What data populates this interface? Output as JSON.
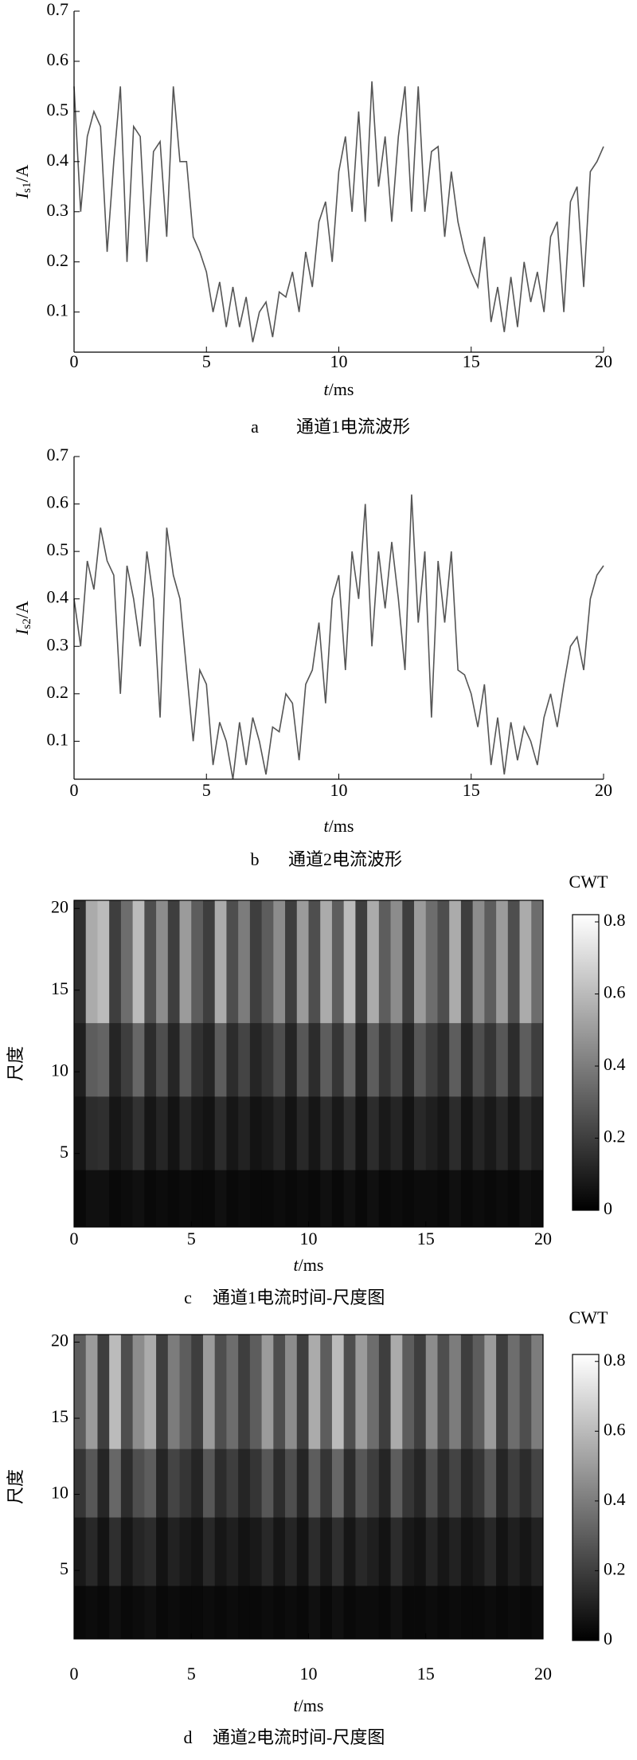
{
  "chart_data": [
    {
      "type": "line",
      "label": "a",
      "caption": "通道1电流波形",
      "xlabel": {
        "var": "t",
        "unit": "/ms"
      },
      "ylabel": {
        "var": "I",
        "sub": "s1",
        "unit": "/A"
      },
      "xlim": [
        0,
        20
      ],
      "xticks": [
        0,
        5,
        10,
        15,
        20
      ],
      "ylim": [
        0.02,
        0.7
      ],
      "yticks": [
        0.1,
        0.2,
        0.3,
        0.4,
        0.5,
        0.6,
        0.7
      ],
      "x": [
        0,
        0.25,
        0.5,
        0.75,
        1,
        1.25,
        1.5,
        1.75,
        2,
        2.25,
        2.5,
        2.75,
        3,
        3.25,
        3.5,
        3.75,
        4,
        4.25,
        4.5,
        4.75,
        5,
        5.25,
        5.5,
        5.75,
        6,
        6.25,
        6.5,
        6.75,
        7,
        7.25,
        7.5,
        7.75,
        8,
        8.25,
        8.5,
        8.75,
        9,
        9.25,
        9.5,
        9.75,
        10,
        10.25,
        10.5,
        10.75,
        11,
        11.25,
        11.5,
        11.75,
        12,
        12.25,
        12.5,
        12.75,
        13,
        13.25,
        13.5,
        13.75,
        14,
        14.25,
        14.5,
        14.75,
        15,
        15.25,
        15.5,
        15.75,
        16,
        16.25,
        16.5,
        16.75,
        17,
        17.25,
        17.5,
        17.75,
        18,
        18.25,
        18.5,
        18.75,
        19,
        19.25,
        19.5,
        19.75,
        20
      ],
      "series": [
        {
          "color": "#555555",
          "values": [
            0.55,
            0.3,
            0.45,
            0.5,
            0.47,
            0.22,
            0.4,
            0.55,
            0.2,
            0.47,
            0.45,
            0.2,
            0.42,
            0.44,
            0.25,
            0.55,
            0.4,
            0.4,
            0.25,
            0.22,
            0.18,
            0.1,
            0.16,
            0.07,
            0.15,
            0.07,
            0.13,
            0.04,
            0.1,
            0.12,
            0.05,
            0.14,
            0.13,
            0.18,
            0.1,
            0.22,
            0.15,
            0.28,
            0.32,
            0.2,
            0.38,
            0.45,
            0.3,
            0.5,
            0.28,
            0.56,
            0.35,
            0.45,
            0.28,
            0.45,
            0.55,
            0.3,
            0.55,
            0.3,
            0.42,
            0.43,
            0.25,
            0.38,
            0.28,
            0.22,
            0.18,
            0.15,
            0.25,
            0.08,
            0.15,
            0.06,
            0.17,
            0.07,
            0.2,
            0.12,
            0.18,
            0.1,
            0.25,
            0.28,
            0.1,
            0.32,
            0.35,
            0.15,
            0.38,
            0.4,
            0.43
          ]
        }
      ]
    },
    {
      "type": "line",
      "label": "b",
      "caption": "通道2电流波形",
      "xlabel": {
        "var": "t",
        "unit": "/ms"
      },
      "ylabel": {
        "var": "I",
        "sub": "s2",
        "unit": "/A"
      },
      "xlim": [
        0,
        20
      ],
      "xticks": [
        0,
        5,
        10,
        15,
        20
      ],
      "ylim": [
        0.02,
        0.7
      ],
      "yticks": [
        0.1,
        0.2,
        0.3,
        0.4,
        0.5,
        0.6,
        0.7
      ],
      "x": [
        0,
        0.25,
        0.5,
        0.75,
        1,
        1.25,
        1.5,
        1.75,
        2,
        2.25,
        2.5,
        2.75,
        3,
        3.25,
        3.5,
        3.75,
        4,
        4.25,
        4.5,
        4.75,
        5,
        5.25,
        5.5,
        5.75,
        6,
        6.25,
        6.5,
        6.75,
        7,
        7.25,
        7.5,
        7.75,
        8,
        8.25,
        8.5,
        8.75,
        9,
        9.25,
        9.5,
        9.75,
        10,
        10.25,
        10.5,
        10.75,
        11,
        11.25,
        11.5,
        11.75,
        12,
        12.25,
        12.5,
        12.75,
        13,
        13.25,
        13.5,
        13.75,
        14,
        14.25,
        14.5,
        14.75,
        15,
        15.25,
        15.5,
        15.75,
        16,
        16.25,
        16.5,
        16.75,
        17,
        17.25,
        17.5,
        17.75,
        18,
        18.25,
        18.5,
        18.75,
        19,
        19.25,
        19.5,
        19.75,
        20
      ],
      "series": [
        {
          "color": "#555555",
          "values": [
            0.4,
            0.3,
            0.48,
            0.42,
            0.55,
            0.48,
            0.45,
            0.2,
            0.47,
            0.4,
            0.3,
            0.5,
            0.4,
            0.15,
            0.55,
            0.45,
            0.4,
            0.25,
            0.1,
            0.25,
            0.22,
            0.05,
            0.14,
            0.1,
            0.02,
            0.14,
            0.05,
            0.15,
            0.1,
            0.03,
            0.13,
            0.12,
            0.2,
            0.18,
            0.06,
            0.22,
            0.25,
            0.35,
            0.18,
            0.4,
            0.45,
            0.25,
            0.5,
            0.4,
            0.6,
            0.3,
            0.5,
            0.38,
            0.52,
            0.4,
            0.25,
            0.62,
            0.35,
            0.5,
            0.15,
            0.48,
            0.35,
            0.5,
            0.25,
            0.24,
            0.2,
            0.13,
            0.22,
            0.05,
            0.15,
            0.03,
            0.14,
            0.06,
            0.13,
            0.1,
            0.05,
            0.15,
            0.2,
            0.13,
            0.22,
            0.3,
            0.32,
            0.25,
            0.4,
            0.45,
            0.47
          ]
        }
      ]
    },
    {
      "type": "heatmap",
      "label": "c",
      "caption": "通道1电流时间-尺度图",
      "xlabel": {
        "var": "t",
        "unit": "/ms"
      },
      "ylabel": "尺度",
      "colorbar_title": "CWT",
      "xlim": [
        0,
        20
      ],
      "xticks": [
        0,
        5,
        10,
        15,
        20
      ],
      "ylim": [
        0.5,
        20.5
      ],
      "yticks": [
        5,
        10,
        15,
        20
      ],
      "clim": [
        0,
        0.82
      ],
      "cticks": [
        0,
        0.2,
        0.4,
        0.6,
        0.8
      ],
      "x_edges": [
        0,
        0.5,
        1,
        1.5,
        2,
        2.5,
        3,
        3.5,
        4,
        4.5,
        5,
        5.5,
        6,
        6.5,
        7,
        7.5,
        8,
        8.5,
        9,
        9.5,
        10,
        10.5,
        11,
        11.5,
        12,
        12.5,
        13,
        13.5,
        14,
        14.5,
        15,
        15.5,
        16,
        16.5,
        17,
        17.5,
        18,
        18.5,
        19,
        19.5,
        20
      ],
      "y_edges": [
        0.5,
        4,
        8.5,
        13,
        20.5
      ],
      "z": [
        [
          0.03,
          0.05,
          0.05,
          0.03,
          0.04,
          0.05,
          0.03,
          0.04,
          0.03,
          0.04,
          0.03,
          0.03,
          0.05,
          0.03,
          0.04,
          0.03,
          0.03,
          0.04,
          0.03,
          0.04,
          0.03,
          0.05,
          0.03,
          0.05,
          0.03,
          0.05,
          0.03,
          0.04,
          0.03,
          0.04,
          0.04,
          0.03,
          0.05,
          0.03,
          0.04,
          0.03,
          0.04,
          0.03,
          0.05,
          0.04
        ],
        [
          0.06,
          0.14,
          0.15,
          0.07,
          0.1,
          0.16,
          0.07,
          0.12,
          0.06,
          0.13,
          0.08,
          0.06,
          0.14,
          0.07,
          0.11,
          0.06,
          0.08,
          0.12,
          0.06,
          0.13,
          0.07,
          0.14,
          0.08,
          0.15,
          0.06,
          0.14,
          0.08,
          0.12,
          0.06,
          0.13,
          0.1,
          0.07,
          0.14,
          0.06,
          0.12,
          0.08,
          0.13,
          0.07,
          0.14,
          0.1
        ],
        [
          0.1,
          0.3,
          0.32,
          0.12,
          0.2,
          0.33,
          0.14,
          0.25,
          0.12,
          0.28,
          0.16,
          0.12,
          0.3,
          0.14,
          0.22,
          0.12,
          0.17,
          0.25,
          0.12,
          0.28,
          0.14,
          0.3,
          0.17,
          0.33,
          0.12,
          0.3,
          0.17,
          0.25,
          0.12,
          0.28,
          0.2,
          0.14,
          0.3,
          0.12,
          0.25,
          0.17,
          0.28,
          0.14,
          0.3,
          0.2
        ],
        [
          0.15,
          0.55,
          0.6,
          0.2,
          0.35,
          0.6,
          0.25,
          0.45,
          0.2,
          0.5,
          0.3,
          0.2,
          0.55,
          0.25,
          0.4,
          0.2,
          0.3,
          0.45,
          0.2,
          0.5,
          0.25,
          0.55,
          0.3,
          0.6,
          0.2,
          0.55,
          0.3,
          0.45,
          0.2,
          0.5,
          0.35,
          0.25,
          0.55,
          0.2,
          0.45,
          0.3,
          0.5,
          0.25,
          0.55,
          0.35
        ]
      ]
    },
    {
      "type": "heatmap",
      "label": "d",
      "caption": "通道2电流时间-尺度图",
      "xlabel": {
        "var": "t",
        "unit": "/ms"
      },
      "ylabel": "尺度",
      "colorbar_title": "CWT",
      "xlim": [
        0,
        20
      ],
      "xticks": [
        0,
        5,
        10,
        15,
        20
      ],
      "ylim": [
        0.5,
        20.5
      ],
      "yticks": [
        5,
        10,
        15,
        20
      ],
      "clim": [
        0,
        0.82
      ],
      "cticks": [
        0,
        0.2,
        0.4,
        0.6,
        0.8
      ],
      "x_edges": [
        0,
        0.5,
        1,
        1.5,
        2,
        2.5,
        3,
        3.5,
        4,
        4.5,
        5,
        5.5,
        6,
        6.5,
        7,
        7.5,
        8,
        8.5,
        9,
        9.5,
        10,
        10.5,
        11,
        11.5,
        12,
        12.5,
        13,
        13.5,
        14,
        14.5,
        15,
        15.5,
        16,
        16.5,
        17,
        17.5,
        18,
        18.5,
        19,
        19.5,
        20
      ],
      "y_edges": [
        0.5,
        4,
        8.5,
        13,
        20.5
      ],
      "z": [
        [
          0.03,
          0.04,
          0.03,
          0.05,
          0.03,
          0.04,
          0.05,
          0.03,
          0.04,
          0.03,
          0.03,
          0.04,
          0.03,
          0.04,
          0.03,
          0.03,
          0.04,
          0.03,
          0.04,
          0.03,
          0.05,
          0.03,
          0.05,
          0.03,
          0.04,
          0.04,
          0.03,
          0.05,
          0.03,
          0.03,
          0.04,
          0.03,
          0.04,
          0.03,
          0.03,
          0.04,
          0.03,
          0.04,
          0.03,
          0.04
        ],
        [
          0.08,
          0.13,
          0.06,
          0.15,
          0.07,
          0.12,
          0.14,
          0.06,
          0.11,
          0.08,
          0.06,
          0.13,
          0.07,
          0.1,
          0.06,
          0.08,
          0.13,
          0.07,
          0.12,
          0.06,
          0.14,
          0.08,
          0.15,
          0.07,
          0.13,
          0.1,
          0.06,
          0.14,
          0.08,
          0.06,
          0.12,
          0.07,
          0.11,
          0.06,
          0.08,
          0.13,
          0.06,
          0.1,
          0.07,
          0.11
        ],
        [
          0.17,
          0.28,
          0.12,
          0.33,
          0.14,
          0.25,
          0.3,
          0.12,
          0.22,
          0.17,
          0.12,
          0.28,
          0.14,
          0.2,
          0.12,
          0.17,
          0.28,
          0.14,
          0.25,
          0.12,
          0.3,
          0.17,
          0.33,
          0.14,
          0.28,
          0.2,
          0.12,
          0.3,
          0.17,
          0.12,
          0.25,
          0.14,
          0.22,
          0.12,
          0.17,
          0.28,
          0.12,
          0.2,
          0.14,
          0.22
        ],
        [
          0.3,
          0.5,
          0.2,
          0.6,
          0.25,
          0.45,
          0.55,
          0.2,
          0.4,
          0.3,
          0.2,
          0.5,
          0.25,
          0.35,
          0.2,
          0.3,
          0.5,
          0.25,
          0.45,
          0.2,
          0.55,
          0.3,
          0.6,
          0.25,
          0.5,
          0.35,
          0.2,
          0.55,
          0.3,
          0.2,
          0.45,
          0.25,
          0.4,
          0.2,
          0.3,
          0.5,
          0.2,
          0.35,
          0.25,
          0.4
        ]
      ]
    }
  ]
}
